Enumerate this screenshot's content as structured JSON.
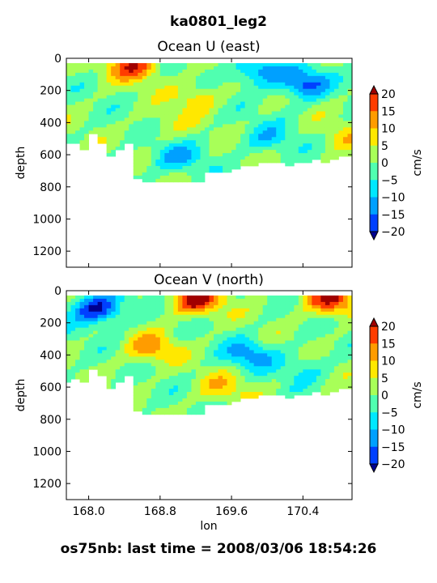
{
  "figure": {
    "suptitle": "ka0801_leg2",
    "footer": "os75nb: last time = 2008/03/06 18:54:26"
  },
  "colormap": [
    "#00008f",
    "#0040ff",
    "#00a0ff",
    "#00e8ff",
    "#50ffb0",
    "#a8ff58",
    "#ffe800",
    "#ff9c00",
    "#ff3c00",
    "#a00000"
  ],
  "chart_data": [
    {
      "type": "heatmap",
      "title": "Ocean U (east)",
      "xlabel": "",
      "ylabel": "depth",
      "xlim": [
        167.75,
        170.95
      ],
      "ylim": [
        1300,
        0
      ],
      "xticks": [
        168.0,
        168.8,
        169.6,
        170.4
      ],
      "xtick_labels": [],
      "yticks": [
        0,
        200,
        400,
        600,
        800,
        1000,
        1200
      ],
      "ytick_labels": [
        "0",
        "200",
        "400",
        "600",
        "800",
        "1000",
        "1200"
      ],
      "colorbar": {
        "label": "cm/s",
        "levels": [
          -20,
          -15,
          -10,
          -5,
          0,
          5,
          10,
          15,
          20
        ],
        "tick_labels": [
          "20",
          "15",
          "10",
          "5",
          "0",
          "−5",
          "−10",
          "−15",
          "−20"
        ],
        "extend": "both"
      },
      "profile_bottoms": [
        [
          167.75,
          520
        ],
        [
          167.85,
          520
        ],
        [
          167.95,
          560
        ],
        [
          168.05,
          460
        ],
        [
          168.15,
          520
        ],
        [
          168.25,
          600
        ],
        [
          168.35,
          560
        ],
        [
          168.45,
          520
        ],
        [
          168.55,
          740
        ],
        [
          168.65,
          760
        ],
        [
          168.75,
          760
        ],
        [
          168.85,
          760
        ],
        [
          168.95,
          760
        ],
        [
          169.05,
          760
        ],
        [
          169.15,
          760
        ],
        [
          169.25,
          760
        ],
        [
          169.35,
          700
        ],
        [
          169.45,
          700
        ],
        [
          169.55,
          700
        ],
        [
          169.65,
          680
        ],
        [
          169.75,
          660
        ],
        [
          169.85,
          660
        ],
        [
          169.95,
          640
        ],
        [
          170.05,
          640
        ],
        [
          170.15,
          640
        ],
        [
          170.25,
          660
        ],
        [
          170.35,
          640
        ],
        [
          170.45,
          640
        ],
        [
          170.55,
          620
        ],
        [
          170.65,
          640
        ],
        [
          170.75,
          620
        ],
        [
          170.85,
          600
        ],
        [
          170.95,
          600
        ]
      ],
      "features": [
        {
          "depth": 50,
          "x": 168.5,
          "value": 18
        },
        {
          "depth": 80,
          "x": 169.9,
          "value": -14
        },
        {
          "depth": 160,
          "x": 170.4,
          "value": -17
        },
        {
          "depth": 240,
          "x": 169.2,
          "value": 8
        },
        {
          "depth": 420,
          "x": 168.9,
          "value": 4
        },
        {
          "depth": 620,
          "x": 169.0,
          "value": -10
        },
        {
          "depth": 500,
          "x": 170.0,
          "value": -8
        },
        {
          "depth": 500,
          "x": 170.9,
          "value": 6
        }
      ]
    },
    {
      "type": "heatmap",
      "title": "Ocean V (north)",
      "xlabel": "lon",
      "ylabel": "depth",
      "xlim": [
        167.75,
        170.95
      ],
      "ylim": [
        1300,
        0
      ],
      "xticks": [
        168.0,
        168.8,
        169.6,
        170.4
      ],
      "xtick_labels": [
        "168.0",
        "168.8",
        "169.6",
        "170.4"
      ],
      "yticks": [
        0,
        200,
        400,
        600,
        800,
        1000,
        1200
      ],
      "ytick_labels": [
        "0",
        "200",
        "400",
        "600",
        "800",
        "1000",
        "1200"
      ],
      "colorbar": {
        "label": "cm/s",
        "levels": [
          -20,
          -15,
          -10,
          -5,
          0,
          5,
          10,
          15,
          20
        ],
        "tick_labels": [
          "20",
          "15",
          "10",
          "5",
          "0",
          "−5",
          "−10",
          "−15",
          "−20"
        ],
        "extend": "both"
      },
      "profile_bottoms": [
        [
          167.75,
          560
        ],
        [
          167.85,
          540
        ],
        [
          167.95,
          560
        ],
        [
          168.05,
          480
        ],
        [
          168.15,
          520
        ],
        [
          168.25,
          600
        ],
        [
          168.35,
          560
        ],
        [
          168.45,
          520
        ],
        [
          168.55,
          740
        ],
        [
          168.65,
          760
        ],
        [
          168.75,
          760
        ],
        [
          168.85,
          760
        ],
        [
          168.95,
          760
        ],
        [
          169.05,
          760
        ],
        [
          169.15,
          760
        ],
        [
          169.25,
          760
        ],
        [
          169.35,
          700
        ],
        [
          169.45,
          700
        ],
        [
          169.55,
          700
        ],
        [
          169.65,
          680
        ],
        [
          169.75,
          660
        ],
        [
          169.85,
          660
        ],
        [
          169.95,
          640
        ],
        [
          170.05,
          640
        ],
        [
          170.15,
          640
        ],
        [
          170.25,
          660
        ],
        [
          170.35,
          640
        ],
        [
          170.45,
          640
        ],
        [
          170.55,
          620
        ],
        [
          170.65,
          640
        ],
        [
          170.75,
          620
        ],
        [
          170.85,
          600
        ],
        [
          170.95,
          600
        ]
      ],
      "features": [
        {
          "depth": 110,
          "x": 168.1,
          "value": -22
        },
        {
          "depth": 60,
          "x": 169.2,
          "value": 22
        },
        {
          "depth": 60,
          "x": 170.7,
          "value": 20
        },
        {
          "depth": 360,
          "x": 168.7,
          "value": 12
        },
        {
          "depth": 400,
          "x": 169.8,
          "value": -12
        },
        {
          "depth": 480,
          "x": 170.4,
          "value": -6
        },
        {
          "depth": 600,
          "x": 169.5,
          "value": 8
        }
      ]
    }
  ]
}
